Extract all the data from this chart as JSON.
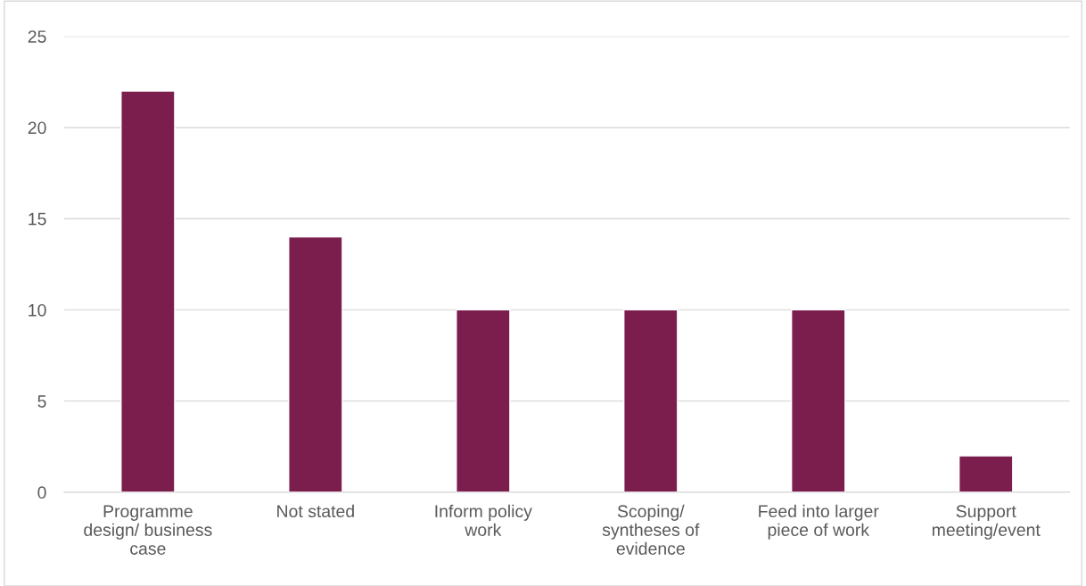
{
  "chart_data": {
    "type": "bar",
    "categories": [
      "Programme\ndesign/ business\ncase",
      "Not stated",
      "Inform policy\nwork",
      "Scoping/\nsyntheses of\nevidence",
      "Feed into larger\npiece of work",
      "Support\nmeeting/event"
    ],
    "values": [
      22,
      14,
      10,
      10,
      10,
      2
    ],
    "color": "#7b1e4e",
    "ylim": [
      0,
      25
    ],
    "yticks": [
      0,
      5,
      10,
      15,
      20,
      25
    ],
    "grid": "y"
  }
}
